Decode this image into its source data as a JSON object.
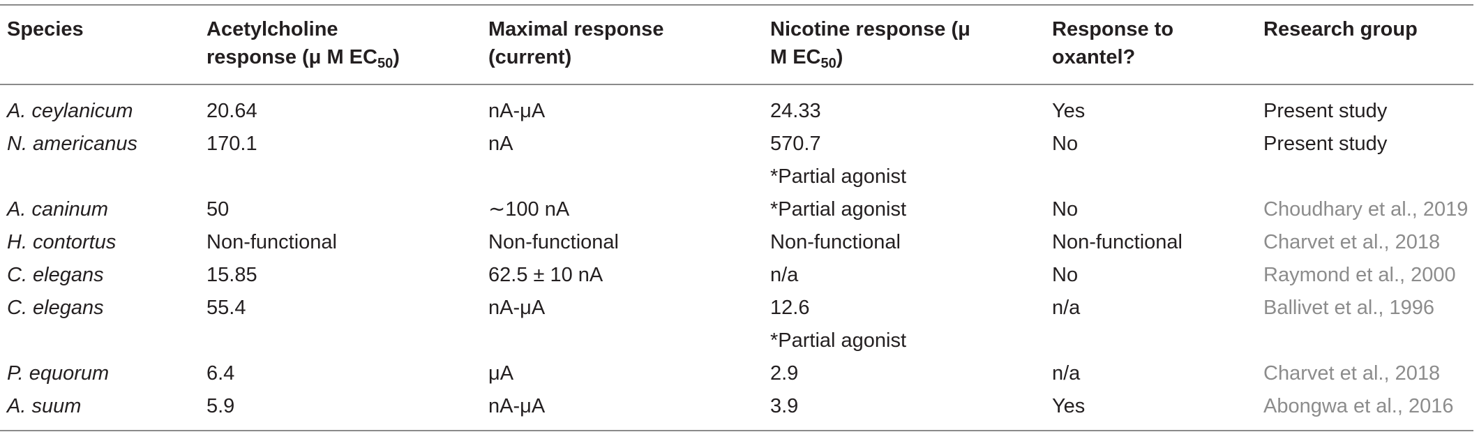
{
  "table": {
    "headers": {
      "species": "Species",
      "ach_line1": "Acetylcholine",
      "ach_line2_main": "response (μ M EC",
      "ach_line2_sub": "50",
      "ach_line2_end": ")",
      "max_line1": "Maximal response",
      "max_line2": "(current)",
      "nic_line1": "Nicotine response (μ",
      "nic_line2_main": "M EC",
      "nic_line2_sub": "50",
      "nic_line2_end": ")",
      "oxa_line1": "Response to",
      "oxa_line2": "oxantel?",
      "group": "Research group"
    },
    "rows": [
      {
        "species": "A. ceylanicum",
        "ach": "20.64",
        "max": "nA-μA",
        "nic": "24.33",
        "oxantel": "Yes",
        "group": "Present study",
        "group_is_ref": false
      },
      {
        "species": "N. americanus",
        "ach": "170.1",
        "max": "nA",
        "nic": "570.7",
        "oxantel": "No",
        "group": "Present study",
        "group_is_ref": false
      },
      {
        "species": "",
        "ach": "",
        "max": "",
        "nic": "*Partial agonist",
        "oxantel": "",
        "group": "",
        "group_is_ref": false
      },
      {
        "species": "A. caninum",
        "ach": "50",
        "max": "∼100 nA",
        "nic": "*Partial agonist",
        "oxantel": "No",
        "group": "Choudhary et al., 2019",
        "group_is_ref": true
      },
      {
        "species": "H. contortus",
        "ach": "Non-functional",
        "max": "Non-functional",
        "nic": "Non-functional",
        "oxantel": "Non-functional",
        "group": "Charvet et al., 2018",
        "group_is_ref": true
      },
      {
        "species": "C. elegans",
        "ach": "15.85",
        "max": "62.5 ± 10 nA",
        "nic": "n/a",
        "oxantel": "No",
        "group": "Raymond et al., 2000",
        "group_is_ref": true
      },
      {
        "species": "C. elegans",
        "ach": "55.4",
        "max": "nA-μA",
        "nic": "12.6",
        "oxantel": "n/a",
        "group": "Ballivet et al., 1996",
        "group_is_ref": true
      },
      {
        "species": "",
        "ach": "",
        "max": "",
        "nic": "*Partial agonist",
        "oxantel": "",
        "group": "",
        "group_is_ref": false
      },
      {
        "species": "P. equorum",
        "ach": "6.4",
        "max": "μA",
        "nic": "2.9",
        "oxantel": "n/a",
        "group": "Charvet et al., 2018",
        "group_is_ref": true
      },
      {
        "species": "A. suum",
        "ach": "5.9",
        "max": "nA-μA",
        "nic": "3.9",
        "oxantel": "Yes",
        "group": "Abongwa et al., 2016",
        "group_is_ref": true
      }
    ]
  },
  "colors": {
    "text": "#231f20",
    "reference_link": "#8c8c8c",
    "rule": "#8a8a8a"
  }
}
